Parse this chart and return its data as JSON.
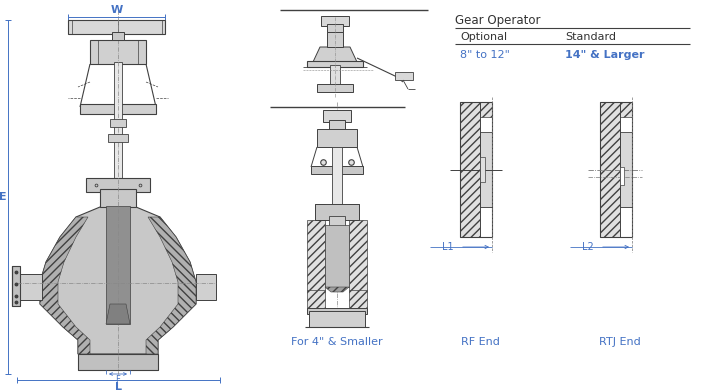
{
  "bg_color": "#ffffff",
  "line_color": "#404040",
  "dim_color": "#4472c4",
  "text_color": "#333333",
  "gear_operator_title": "Gear Operator",
  "col1_header": "Optional",
  "col2_header": "Standard",
  "col1_val": "8\" to 12\"",
  "col2_val": "14\" & Larger",
  "label_w": "W",
  "label_e": "E",
  "label_l": "L",
  "label_l1": "L1",
  "label_l2": "L2",
  "caption1": "For 4\" & Smaller",
  "caption2": "RF End",
  "caption3": "RTJ End",
  "fig_width": 7.01,
  "fig_height": 3.92,
  "dpi": 100
}
